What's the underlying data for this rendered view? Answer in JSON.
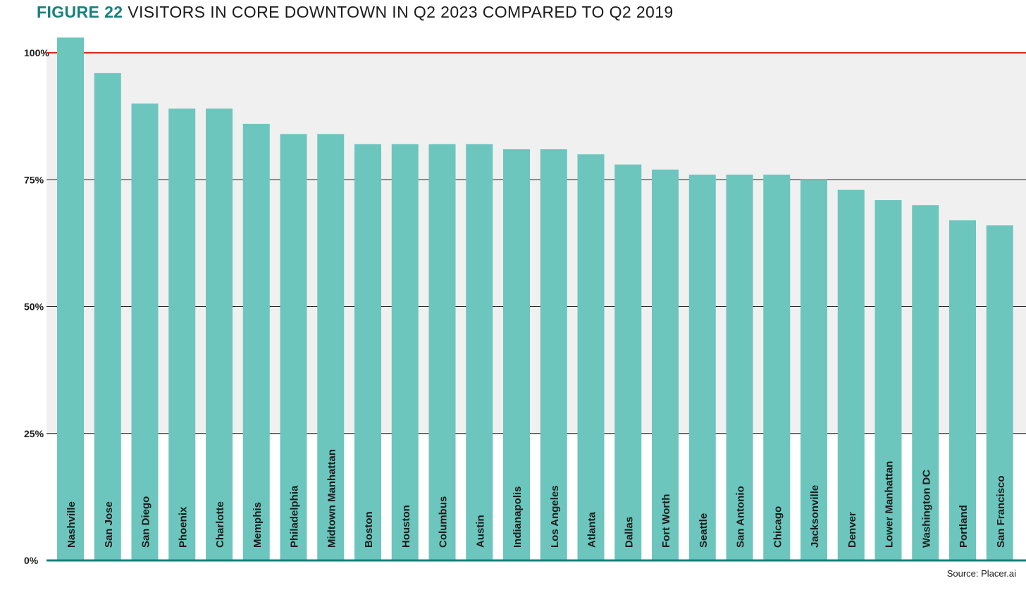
{
  "chart_data": {
    "type": "bar",
    "title_prefix": "FIGURE 22",
    "title": "VISITORS IN CORE DOWNTOWN IN Q2 2023 COMPARED TO Q2 2019",
    "source": "Source: Placer.ai",
    "categories": [
      "Nashville",
      "San Jose",
      "San Diego",
      "Phoenix",
      "Charlotte",
      "Memphis",
      "Philadelphia",
      "Midtown Manhattan",
      "Boston",
      "Houston",
      "Columbus",
      "Austin",
      "Indianapolis",
      "Los Angeles",
      "Atlanta",
      "Dallas",
      "Fort Worth",
      "Seattle",
      "San Antonio",
      "Chicago",
      "Jacksonville",
      "Denver",
      "Lower Manhattan",
      "Washington DC",
      "Portland",
      "San Francisco"
    ],
    "values": [
      103,
      96,
      90,
      89,
      89,
      86,
      84,
      84,
      82,
      82,
      82,
      82,
      81,
      81,
      80,
      78,
      77,
      76,
      76,
      76,
      75,
      73,
      71,
      70,
      67,
      66
    ],
    "ylim": [
      0,
      100
    ],
    "yticks": [
      0,
      25,
      50,
      75,
      100
    ],
    "ytick_labels": [
      "0%",
      "25%",
      "50%",
      "75%",
      "100%"
    ],
    "reference_line": 100,
    "shaded_band": [
      25,
      100
    ],
    "grid": true,
    "xlabel": "",
    "ylabel": "",
    "colors": {
      "bar": "#6cc6bd",
      "reference_line": "#d9281f",
      "band": "#f0f0f0",
      "axis": "#16807a",
      "grid": "#1b1b1b",
      "title_accent": "#16807a"
    }
  }
}
